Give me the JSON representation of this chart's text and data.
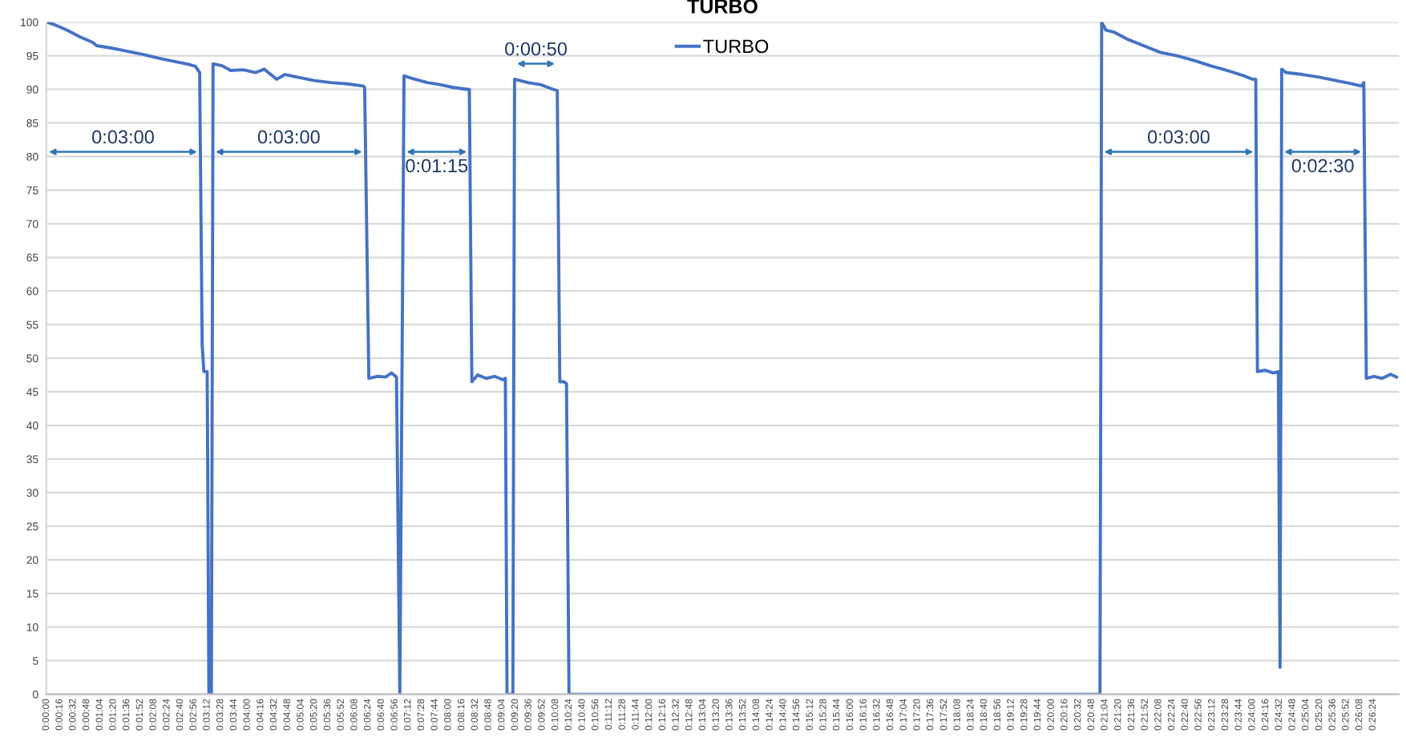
{
  "chart_data": {
    "type": "line",
    "title": "TURBO",
    "series": [
      {
        "name": "TURBO",
        "color": "#4472c4",
        "x": [
          0,
          10,
          25,
          40,
          55,
          60,
          75,
          95,
          115,
          135,
          155,
          170,
          178,
          183,
          186,
          188,
          192,
          194,
          197,
          199,
          210,
          220,
          235,
          250,
          260,
          275,
          285,
          300,
          320,
          340,
          360,
          378,
          380,
          385,
          395,
          405,
          412,
          418,
          422,
          427,
          440,
          455,
          470,
          485,
          502,
          505,
          508,
          515,
          525,
          535,
          545,
          548,
          550,
          557,
          559,
          575,
          590,
          605,
          610,
          613,
          618,
          621,
          624,
          1258,
          1260,
          1265,
          1275,
          1290,
          1310,
          1330,
          1350,
          1370,
          1390,
          1410,
          1430,
          1440,
          1444,
          1446,
          1455,
          1465,
          1471,
          1473,
          1475,
          1480,
          1500,
          1520,
          1540,
          1560,
          1570,
          1573,
          1576,
          1585,
          1595,
          1605,
          1612
        ],
        "values": [
          100,
          99.6,
          98.8,
          97.8,
          97,
          96.5,
          96.2,
          95.7,
          95.2,
          94.6,
          94.1,
          93.7,
          93.4,
          92.5,
          52,
          48,
          48,
          0,
          0,
          93.8,
          93.5,
          92.8,
          92.9,
          92.5,
          93,
          91.5,
          92.2,
          91.8,
          91.3,
          91,
          90.8,
          90.5,
          90.3,
          47,
          47.3,
          47.2,
          47.8,
          47.2,
          0,
          92,
          91.5,
          91,
          90.7,
          90.3,
          90,
          90,
          46.5,
          47.5,
          47,
          47.3,
          46.8,
          47,
          0,
          0,
          91.5,
          91,
          90.7,
          90,
          89.8,
          46.5,
          46.5,
          46.2,
          0,
          0,
          100,
          98.8,
          98.5,
          97.5,
          96.5,
          95.5,
          95,
          94.3,
          93.5,
          92.8,
          92,
          91.5,
          91.5,
          48,
          48.2,
          47.8,
          48,
          4,
          93,
          92.5,
          92.2,
          91.8,
          91.3,
          90.8,
          90.5,
          91,
          47,
          47.3,
          47,
          47.6,
          47.2
        ]
      }
    ],
    "xlim": [
      0,
      1615
    ],
    "ylim": [
      0,
      100
    ],
    "yticks": [
      0,
      5,
      10,
      15,
      20,
      25,
      30,
      35,
      40,
      45,
      50,
      55,
      60,
      65,
      70,
      75,
      80,
      85,
      90,
      95,
      100
    ],
    "xticks": [
      {
        "value": 0,
        "label": "0:00:00"
      },
      {
        "value": 16,
        "label": "0:00:16"
      },
      {
        "value": 32,
        "label": "0:00:32"
      },
      {
        "value": 48,
        "label": "0:00:48"
      },
      {
        "value": 64,
        "label": "0:01:04"
      },
      {
        "value": 80,
        "label": "0:01:20"
      },
      {
        "value": 96,
        "label": "0:01:36"
      },
      {
        "value": 112,
        "label": "0:01:52"
      },
      {
        "value": 128,
        "label": "0:02:08"
      },
      {
        "value": 144,
        "label": "0:02:24"
      },
      {
        "value": 160,
        "label": "0:02:40"
      },
      {
        "value": 176,
        "label": "0:02:56"
      },
      {
        "value": 192,
        "label": "0:03:12"
      },
      {
        "value": 208,
        "label": "0:03:28"
      },
      {
        "value": 224,
        "label": "0:03:44"
      },
      {
        "value": 240,
        "label": "0:04:00"
      },
      {
        "value": 256,
        "label": "0:04:16"
      },
      {
        "value": 272,
        "label": "0:04:32"
      },
      {
        "value": 288,
        "label": "0:04:48"
      },
      {
        "value": 304,
        "label": "0:05:04"
      },
      {
        "value": 320,
        "label": "0:05:20"
      },
      {
        "value": 336,
        "label": "0:05:36"
      },
      {
        "value": 352,
        "label": "0:05:52"
      },
      {
        "value": 368,
        "label": "0:06:08"
      },
      {
        "value": 384,
        "label": "0:06:24"
      },
      {
        "value": 400,
        "label": "0:06:40"
      },
      {
        "value": 416,
        "label": "0:06:56"
      },
      {
        "value": 432,
        "label": "0:07:12"
      },
      {
        "value": 448,
        "label": "0:07:28"
      },
      {
        "value": 464,
        "label": "0:07:44"
      },
      {
        "value": 480,
        "label": "0:08:00"
      },
      {
        "value": 496,
        "label": "0:08:16"
      },
      {
        "value": 512,
        "label": "0:08:32"
      },
      {
        "value": 528,
        "label": "0:08:48"
      },
      {
        "value": 544,
        "label": "0:09:04"
      },
      {
        "value": 560,
        "label": "0:09:20"
      },
      {
        "value": 576,
        "label": "0:09:36"
      },
      {
        "value": 592,
        "label": "0:09:52"
      },
      {
        "value": 608,
        "label": "0:10:08"
      },
      {
        "value": 624,
        "label": "0:10:24"
      },
      {
        "value": 640,
        "label": "0:10:40"
      },
      {
        "value": 656,
        "label": "0:10:56"
      },
      {
        "value": 672,
        "label": "0:11:12"
      },
      {
        "value": 688,
        "label": "0:11:28"
      },
      {
        "value": 704,
        "label": "0:11:44"
      },
      {
        "value": 720,
        "label": "0:12:00"
      },
      {
        "value": 736,
        "label": "0:12:16"
      },
      {
        "value": 752,
        "label": "0:12:32"
      },
      {
        "value": 768,
        "label": "0:12:48"
      },
      {
        "value": 784,
        "label": "0:13:04"
      },
      {
        "value": 800,
        "label": "0:13:20"
      },
      {
        "value": 816,
        "label": "0:13:36"
      },
      {
        "value": 832,
        "label": "0:13:52"
      },
      {
        "value": 848,
        "label": "0:14:08"
      },
      {
        "value": 864,
        "label": "0:14:24"
      },
      {
        "value": 880,
        "label": "0:14:40"
      },
      {
        "value": 896,
        "label": "0:14:56"
      },
      {
        "value": 912,
        "label": "0:15:12"
      },
      {
        "value": 928,
        "label": "0:15:28"
      },
      {
        "value": 944,
        "label": "0:15:44"
      },
      {
        "value": 960,
        "label": "0:16:00"
      },
      {
        "value": 976,
        "label": "0:16:16"
      },
      {
        "value": 992,
        "label": "0:16:32"
      },
      {
        "value": 1008,
        "label": "0:16:48"
      },
      {
        "value": 1024,
        "label": "0:17:04"
      },
      {
        "value": 1040,
        "label": "0:17:20"
      },
      {
        "value": 1056,
        "label": "0:17:36"
      },
      {
        "value": 1072,
        "label": "0:17:52"
      },
      {
        "value": 1088,
        "label": "0:18:08"
      },
      {
        "value": 1104,
        "label": "0:18:24"
      },
      {
        "value": 1120,
        "label": "0:18:40"
      },
      {
        "value": 1136,
        "label": "0:18:56"
      },
      {
        "value": 1152,
        "label": "0:19:12"
      },
      {
        "value": 1168,
        "label": "0:19:28"
      },
      {
        "value": 1184,
        "label": "0:19:44"
      },
      {
        "value": 1200,
        "label": "0:20:00"
      },
      {
        "value": 1216,
        "label": "0:20:16"
      },
      {
        "value": 1232,
        "label": "0:20:32"
      },
      {
        "value": 1248,
        "label": "0:20:48"
      },
      {
        "value": 1264,
        "label": "0:21:04"
      },
      {
        "value": 1280,
        "label": "0:21:20"
      },
      {
        "value": 1296,
        "label": "0:21:36"
      },
      {
        "value": 1312,
        "label": "0:21:52"
      },
      {
        "value": 1328,
        "label": "0:22:08"
      },
      {
        "value": 1344,
        "label": "0:22:24"
      },
      {
        "value": 1360,
        "label": "0:22:40"
      },
      {
        "value": 1376,
        "label": "0:22:56"
      },
      {
        "value": 1392,
        "label": "0:23:12"
      },
      {
        "value": 1408,
        "label": "0:23:28"
      },
      {
        "value": 1424,
        "label": "0:23:44"
      },
      {
        "value": 1440,
        "label": "0:24:00"
      },
      {
        "value": 1456,
        "label": "0:24:16"
      },
      {
        "value": 1472,
        "label": "0:24:32"
      },
      {
        "value": 1488,
        "label": "0:24:48"
      },
      {
        "value": 1504,
        "label": "0:25:04"
      },
      {
        "value": 1520,
        "label": "0:25:20"
      },
      {
        "value": 1536,
        "label": "0:25:36"
      },
      {
        "value": 1552,
        "label": "0:25:52"
      },
      {
        "value": 1568,
        "label": "0:26:08"
      },
      {
        "value": 1584,
        "label": "0:26:24"
      }
    ],
    "annotations": [
      "0:03:00",
      "0:03:00",
      "0:01:15",
      "0:00:50",
      "0:03:00",
      "0:02:30"
    ],
    "grid": "y",
    "legend": "top",
    "marker": "none",
    "line_style": "solid"
  }
}
